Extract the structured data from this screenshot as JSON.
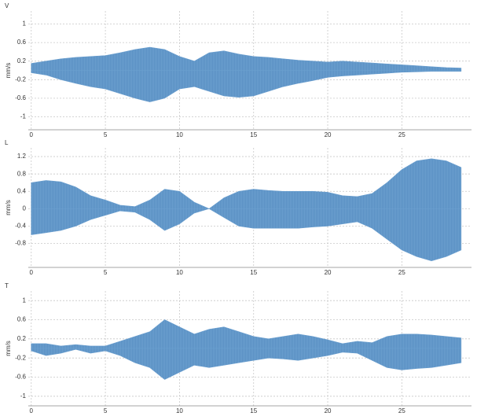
{
  "chart_data": [
    {
      "type": "envelope",
      "axis_title": "V",
      "ylabel": "mm/s",
      "color": "#6b9fcf",
      "grid": true,
      "xlim": [
        -0.2,
        29.7
      ],
      "xticks": [
        0,
        5,
        10,
        15,
        20,
        25
      ],
      "ylim": [
        -1.28,
        1.28
      ],
      "yticks": [
        1,
        0.6,
        0.2,
        -0.2,
        -0.6,
        -1
      ],
      "x": [
        0,
        1,
        2,
        3,
        4,
        5,
        6,
        7,
        8,
        9,
        10,
        11,
        12,
        13,
        14,
        15,
        16,
        17,
        18,
        19,
        20,
        21,
        22,
        23,
        24,
        25,
        26,
        27,
        28,
        29
      ],
      "series": [
        {
          "values": [
            0.15,
            0.2,
            0.25,
            0.28,
            0.3,
            0.32,
            0.38,
            0.45,
            0.5,
            0.45,
            0.3,
            0.2,
            0.38,
            0.42,
            0.35,
            0.3,
            0.28,
            0.25,
            0.22,
            0.2,
            0.18,
            0.2,
            0.18,
            0.16,
            0.14,
            0.12,
            0.1,
            0.08,
            0.06,
            0.05
          ]
        },
        {
          "values": [
            -0.05,
            -0.1,
            -0.2,
            -0.28,
            -0.35,
            -0.4,
            -0.5,
            -0.6,
            -0.68,
            -0.6,
            -0.4,
            -0.35,
            -0.45,
            -0.55,
            -0.58,
            -0.55,
            -0.45,
            -0.35,
            -0.28,
            -0.22,
            -0.15,
            -0.12,
            -0.1,
            -0.08,
            -0.06,
            -0.04,
            -0.03,
            -0.02,
            -0.02,
            -0.02
          ]
        }
      ]
    },
    {
      "type": "envelope",
      "axis_title": "L",
      "ylabel": "mm/s",
      "color": "#6b9fcf",
      "grid": true,
      "xlim": [
        -0.2,
        29.7
      ],
      "xticks": [
        0,
        5,
        10,
        15,
        20,
        25
      ],
      "ylim": [
        -1.35,
        1.4
      ],
      "yticks": [
        1.2,
        0.8,
        0.4,
        0,
        -0.4,
        -0.8
      ],
      "x": [
        0,
        1,
        2,
        3,
        4,
        5,
        6,
        7,
        8,
        9,
        10,
        11,
        12,
        13,
        14,
        15,
        16,
        17,
        18,
        19,
        20,
        21,
        22,
        23,
        24,
        25,
        26,
        27,
        28,
        29
      ],
      "series": [
        {
          "values": [
            0.6,
            0.65,
            0.62,
            0.5,
            0.3,
            0.2,
            0.08,
            0.05,
            0.2,
            0.45,
            0.4,
            0.15,
            0,
            0.25,
            0.4,
            0.45,
            0.42,
            0.4,
            0.4,
            0.4,
            0.38,
            0.3,
            0.28,
            0.35,
            0.6,
            0.9,
            1.1,
            1.15,
            1.1,
            0.95
          ]
        },
        {
          "values": [
            -0.6,
            -0.55,
            -0.5,
            -0.4,
            -0.25,
            -0.15,
            -0.05,
            -0.08,
            -0.25,
            -0.5,
            -0.35,
            -0.1,
            0,
            -0.2,
            -0.4,
            -0.45,
            -0.45,
            -0.45,
            -0.45,
            -0.42,
            -0.4,
            -0.35,
            -0.3,
            -0.45,
            -0.7,
            -0.95,
            -1.1,
            -1.2,
            -1.1,
            -0.95
          ]
        }
      ]
    },
    {
      "type": "envelope",
      "axis_title": "T",
      "ylabel": "mm/s",
      "color": "#6b9fcf",
      "grid": true,
      "xlim": [
        -0.2,
        29.7
      ],
      "xticks": [
        0,
        5,
        10,
        15,
        20,
        25
      ],
      "ylim": [
        -1.2,
        1.2
      ],
      "yticks": [
        1,
        0.6,
        0.2,
        -0.2,
        -0.6,
        -1
      ],
      "x": [
        0,
        1,
        2,
        3,
        4,
        5,
        6,
        7,
        8,
        9,
        10,
        11,
        12,
        13,
        14,
        15,
        16,
        17,
        18,
        19,
        20,
        21,
        22,
        23,
        24,
        25,
        26,
        27,
        28,
        29
      ],
      "series": [
        {
          "values": [
            0.1,
            0.1,
            0.05,
            0.08,
            0.05,
            0.05,
            0.15,
            0.25,
            0.35,
            0.6,
            0.45,
            0.3,
            0.4,
            0.45,
            0.35,
            0.25,
            0.2,
            0.25,
            0.3,
            0.25,
            0.18,
            0.1,
            0.15,
            0.12,
            0.25,
            0.3,
            0.3,
            0.28,
            0.25,
            0.22
          ]
        },
        {
          "values": [
            -0.05,
            -0.15,
            -0.1,
            -0.02,
            -0.1,
            -0.05,
            -0.15,
            -0.3,
            -0.4,
            -0.65,
            -0.5,
            -0.35,
            -0.4,
            -0.35,
            -0.3,
            -0.25,
            -0.2,
            -0.22,
            -0.25,
            -0.2,
            -0.15,
            -0.08,
            -0.1,
            -0.25,
            -0.4,
            -0.45,
            -0.42,
            -0.4,
            -0.35,
            -0.3
          ]
        }
      ]
    }
  ]
}
